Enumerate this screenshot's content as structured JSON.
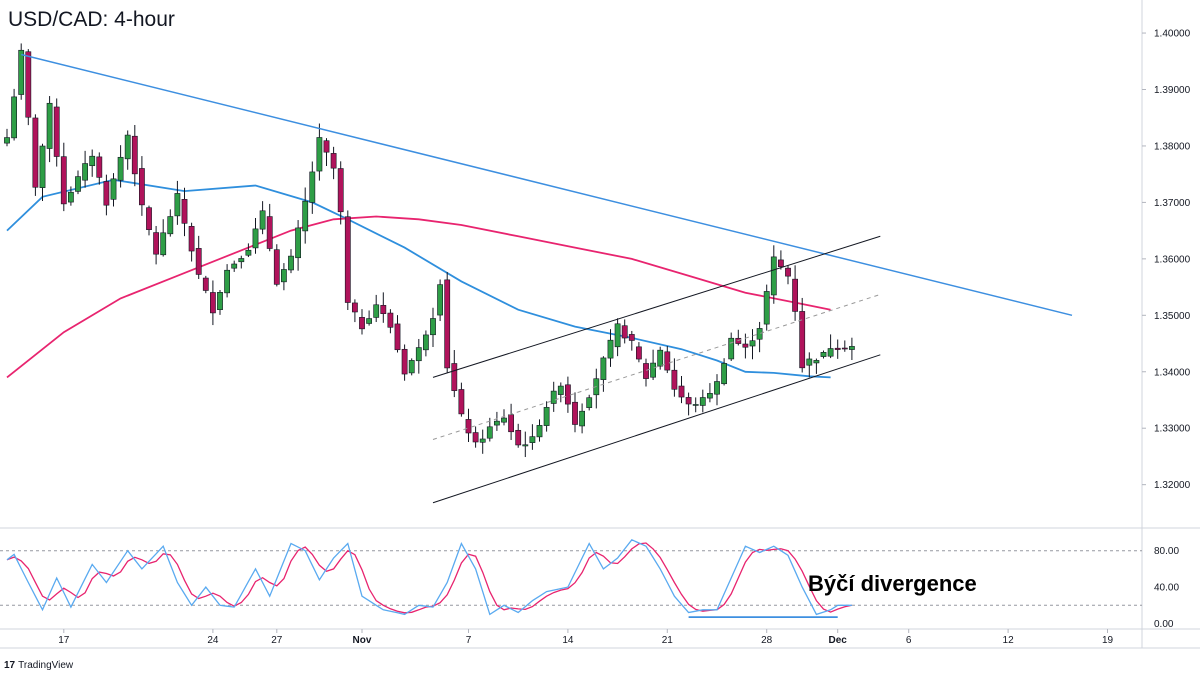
{
  "chart_data": {
    "type": "candlestick",
    "title": "USD/CAD: 4-hour",
    "price_axis": {
      "ticks": [
        "1.40000",
        "1.39000",
        "1.38000",
        "1.37000",
        "1.36000",
        "1.35000",
        "1.34000",
        "1.33000",
        "1.32000"
      ],
      "range": [
        1.3125,
        1.4055
      ]
    },
    "oscillator_axis": {
      "ticks": [
        "80.00",
        "40.00",
        "0.00"
      ],
      "range": [
        -5,
        105
      ],
      "levels": [
        80,
        20
      ]
    },
    "x_axis": {
      "ticks": [
        "17",
        "24",
        "27",
        "Nov",
        "7",
        "14",
        "21",
        "28",
        "Dec",
        "6",
        "12",
        "19"
      ],
      "tick_bars": [
        8,
        29,
        38,
        50,
        65,
        79,
        93,
        107,
        117,
        127,
        141,
        155
      ]
    },
    "bars": {
      "count": 120,
      "anchors": [
        [
          0,
          1.3815
        ],
        [
          2,
          1.3965
        ],
        [
          4,
          1.373
        ],
        [
          6,
          1.387
        ],
        [
          8,
          1.37
        ],
        [
          12,
          1.3785
        ],
        [
          14,
          1.37
        ],
        [
          17,
          1.382
        ],
        [
          19,
          1.369
        ],
        [
          21,
          1.361
        ],
        [
          24,
          1.371
        ],
        [
          27,
          1.357
        ],
        [
          29,
          1.351
        ],
        [
          31,
          1.358
        ],
        [
          34,
          1.362
        ],
        [
          36,
          1.368
        ],
        [
          38,
          1.356
        ],
        [
          40,
          1.36
        ],
        [
          42,
          1.37
        ],
        [
          44,
          1.381
        ],
        [
          46,
          1.376
        ],
        [
          47,
          1.368
        ],
        [
          48,
          1.352
        ],
        [
          50,
          1.348
        ],
        [
          52,
          1.352
        ],
        [
          54,
          1.348
        ],
        [
          56,
          1.34
        ],
        [
          58,
          1.344
        ],
        [
          60,
          1.35
        ],
        [
          61,
          1.356
        ],
        [
          62,
          1.341
        ],
        [
          64,
          1.332
        ],
        [
          66,
          1.327
        ],
        [
          68,
          1.33
        ],
        [
          70,
          1.332
        ],
        [
          72,
          1.327
        ],
        [
          74,
          1.328
        ],
        [
          76,
          1.334
        ],
        [
          78,
          1.338
        ],
        [
          80,
          1.331
        ],
        [
          82,
          1.336
        ],
        [
          84,
          1.342
        ],
        [
          86,
          1.348
        ],
        [
          88,
          1.345
        ],
        [
          90,
          1.339
        ],
        [
          92,
          1.344
        ],
        [
          94,
          1.337
        ],
        [
          96,
          1.334
        ],
        [
          98,
          1.335
        ],
        [
          100,
          1.338
        ],
        [
          102,
          1.346
        ],
        [
          104,
          1.344
        ],
        [
          106,
          1.348
        ],
        [
          108,
          1.36
        ],
        [
          110,
          1.357
        ],
        [
          111,
          1.351
        ],
        [
          112,
          1.341
        ],
        [
          113,
          1.342
        ],
        [
          115,
          1.343
        ],
        [
          116,
          1.3445
        ]
      ],
      "up_color": "#2e9e46",
      "down_color": "#b0135b"
    },
    "moving_averages": [
      {
        "color": "#2f8fdd",
        "points": [
          [
            0,
            1.365
          ],
          [
            5,
            1.371
          ],
          [
            15,
            1.374
          ],
          [
            25,
            1.372
          ],
          [
            35,
            1.373
          ],
          [
            43,
            1.37
          ],
          [
            48,
            1.367
          ],
          [
            56,
            1.362
          ],
          [
            64,
            1.356
          ],
          [
            72,
            1.351
          ],
          [
            80,
            1.348
          ],
          [
            88,
            1.346
          ],
          [
            95,
            1.344
          ],
          [
            100,
            1.342
          ],
          [
            104,
            1.34
          ],
          [
            108,
            1.3398
          ],
          [
            113,
            1.3392
          ],
          [
            116,
            1.339
          ]
        ]
      },
      {
        "color": "#e8246f",
        "points": [
          [
            0,
            1.339
          ],
          [
            8,
            1.347
          ],
          [
            16,
            1.353
          ],
          [
            24,
            1.357
          ],
          [
            32,
            1.361
          ],
          [
            40,
            1.365
          ],
          [
            46,
            1.367
          ],
          [
            52,
            1.3675
          ],
          [
            58,
            1.367
          ],
          [
            64,
            1.366
          ],
          [
            72,
            1.364
          ],
          [
            80,
            1.362
          ],
          [
            88,
            1.36
          ],
          [
            96,
            1.357
          ],
          [
            104,
            1.354
          ],
          [
            112,
            1.352
          ],
          [
            116,
            1.351
          ]
        ]
      }
    ],
    "trend_lines": [
      {
        "color": "#3d8fe0",
        "width": 1.5,
        "dashed": false,
        "from": [
          2,
          1.3962
        ],
        "to": [
          150,
          1.35
        ]
      },
      {
        "color": "#131722",
        "width": 1,
        "dashed": false,
        "from": [
          60,
          1.339
        ],
        "to": [
          123,
          1.364
        ]
      },
      {
        "color": "#131722",
        "width": 1,
        "dashed": false,
        "from": [
          60,
          1.3168
        ],
        "to": [
          123,
          1.343
        ]
      },
      {
        "color": "#999999",
        "width": 1,
        "dashed": true,
        "from": [
          60,
          1.328
        ],
        "to": [
          123,
          1.3537
        ]
      },
      {
        "color": "#3d8fe0",
        "width": 1.8,
        "dashed": false,
        "pane": "oscillator",
        "from": [
          96,
          7
        ],
        "to": [
          117,
          7
        ]
      }
    ],
    "oscillator": {
      "k_color": "#5aaaf0",
      "d_color": "#e8246f",
      "anchors": [
        [
          0,
          70
        ],
        [
          1,
          76
        ],
        [
          3,
          45
        ],
        [
          5,
          15
        ],
        [
          7,
          50
        ],
        [
          9,
          18
        ],
        [
          12,
          65
        ],
        [
          14,
          45
        ],
        [
          17,
          80
        ],
        [
          19,
          60
        ],
        [
          22,
          85
        ],
        [
          24,
          45
        ],
        [
          26,
          20
        ],
        [
          28,
          40
        ],
        [
          30,
          20
        ],
        [
          32,
          18
        ],
        [
          35,
          60
        ],
        [
          37,
          30
        ],
        [
          40,
          88
        ],
        [
          42,
          80
        ],
        [
          44,
          48
        ],
        [
          46,
          72
        ],
        [
          48,
          88
        ],
        [
          50,
          30
        ],
        [
          53,
          15
        ],
        [
          56,
          10
        ],
        [
          58,
          20
        ],
        [
          60,
          18
        ],
        [
          62,
          45
        ],
        [
          64,
          88
        ],
        [
          66,
          60
        ],
        [
          68,
          10
        ],
        [
          70,
          20
        ],
        [
          72,
          12
        ],
        [
          74,
          25
        ],
        [
          76,
          35
        ],
        [
          79,
          40
        ],
        [
          82,
          88
        ],
        [
          84,
          60
        ],
        [
          86,
          72
        ],
        [
          88,
          92
        ],
        [
          90,
          85
        ],
        [
          92,
          60
        ],
        [
          94,
          30
        ],
        [
          96,
          12
        ],
        [
          98,
          15
        ],
        [
          100,
          15
        ],
        [
          102,
          50
        ],
        [
          104,
          85
        ],
        [
          106,
          78
        ],
        [
          108,
          85
        ],
        [
          110,
          75
        ],
        [
          112,
          40
        ],
        [
          114,
          10
        ],
        [
          116,
          15
        ],
        [
          117,
          20
        ]
      ]
    },
    "annotations": [
      "Býčí divergence"
    ]
  },
  "branding": {
    "logo": "17",
    "name": "TradingView"
  }
}
